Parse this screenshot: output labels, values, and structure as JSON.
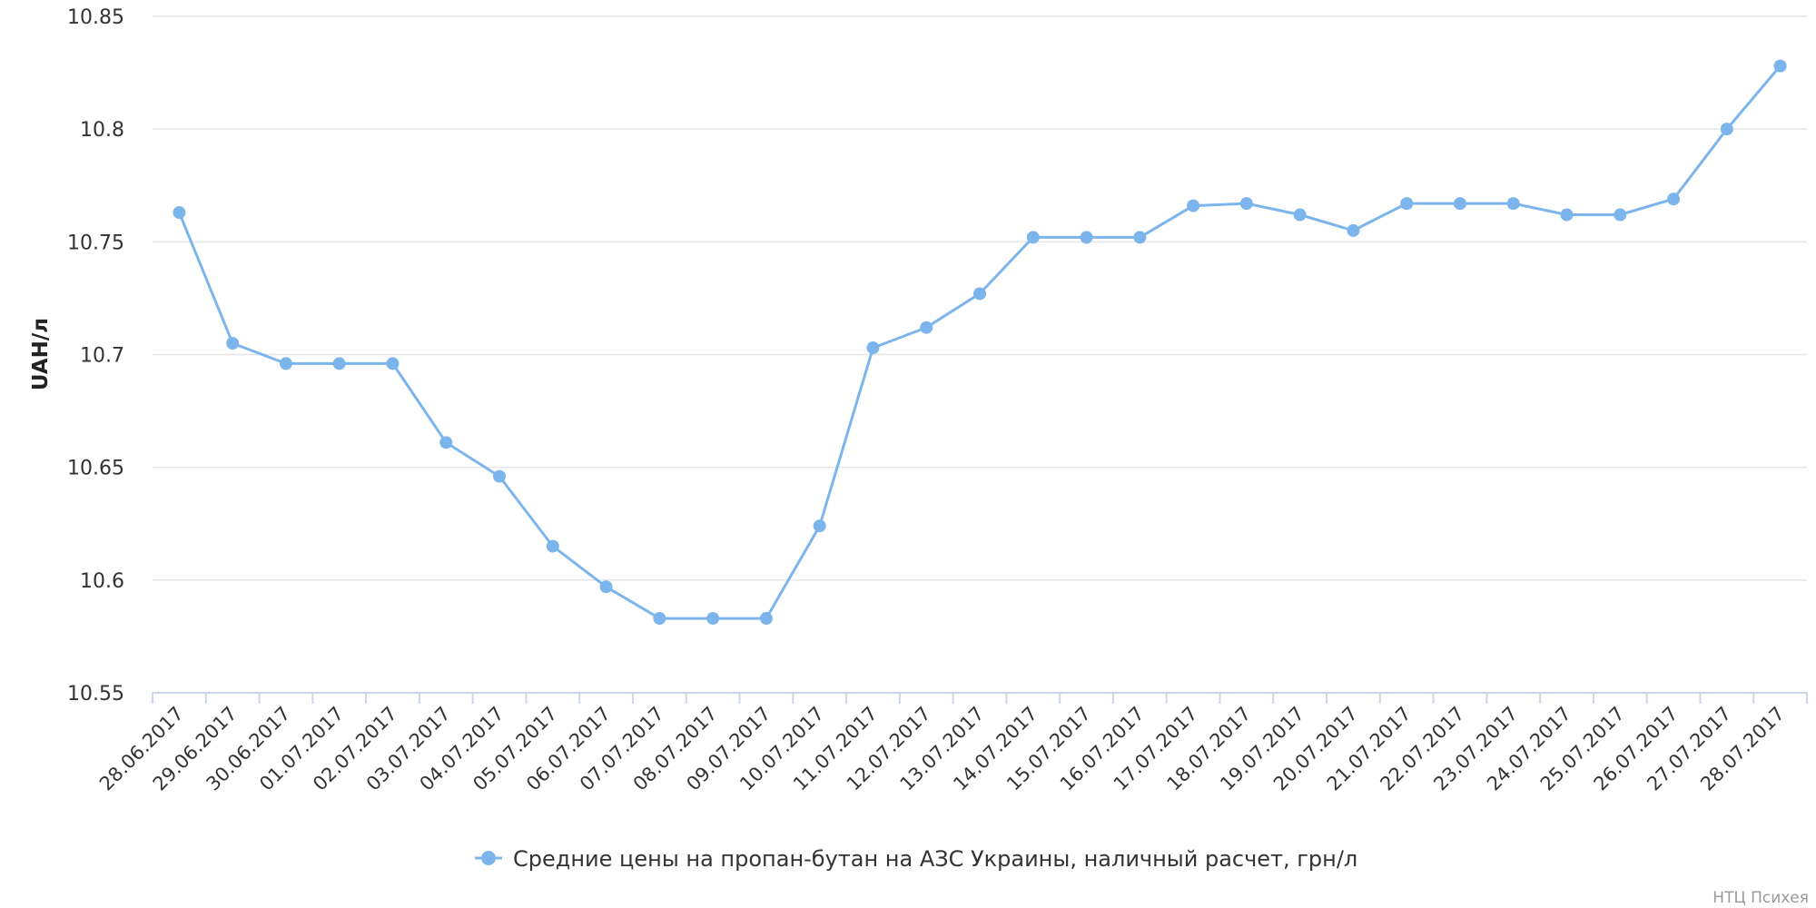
{
  "chart_data": {
    "type": "line",
    "ylabel": "UAH/л",
    "xlabel": "",
    "ylim": [
      10.55,
      10.85
    ],
    "yticks": [
      "10.55",
      "10.6",
      "10.65",
      "10.7",
      "10.75",
      "10.8",
      "10.85"
    ],
    "categories": [
      "28.06.2017",
      "29.06.2017",
      "30.06.2017",
      "01.07.2017",
      "02.07.2017",
      "03.07.2017",
      "04.07.2017",
      "05.07.2017",
      "06.07.2017",
      "07.07.2017",
      "08.07.2017",
      "09.07.2017",
      "10.07.2017",
      "11.07.2017",
      "12.07.2017",
      "13.07.2017",
      "14.07.2017",
      "15.07.2017",
      "16.07.2017",
      "17.07.2017",
      "18.07.2017",
      "19.07.2017",
      "20.07.2017",
      "21.07.2017",
      "22.07.2017",
      "23.07.2017",
      "24.07.2017",
      "25.07.2017",
      "26.07.2017",
      "27.07.2017",
      "28.07.2017"
    ],
    "series": [
      {
        "name": "Средние цены на пропан-бутан на АЗС Украины, наличный расчет, грн/л",
        "color": "#7cb5ec",
        "values": [
          10.763,
          10.705,
          10.696,
          10.696,
          10.696,
          10.661,
          10.646,
          10.615,
          10.597,
          10.583,
          10.583,
          10.583,
          10.624,
          10.703,
          10.712,
          10.727,
          10.752,
          10.752,
          10.752,
          10.766,
          10.767,
          10.762,
          10.755,
          10.767,
          10.767,
          10.767,
          10.762,
          10.762,
          10.769,
          10.8,
          10.828
        ]
      }
    ],
    "grid": true,
    "legend": "bottom-center"
  },
  "credit": "НТЦ Психея"
}
